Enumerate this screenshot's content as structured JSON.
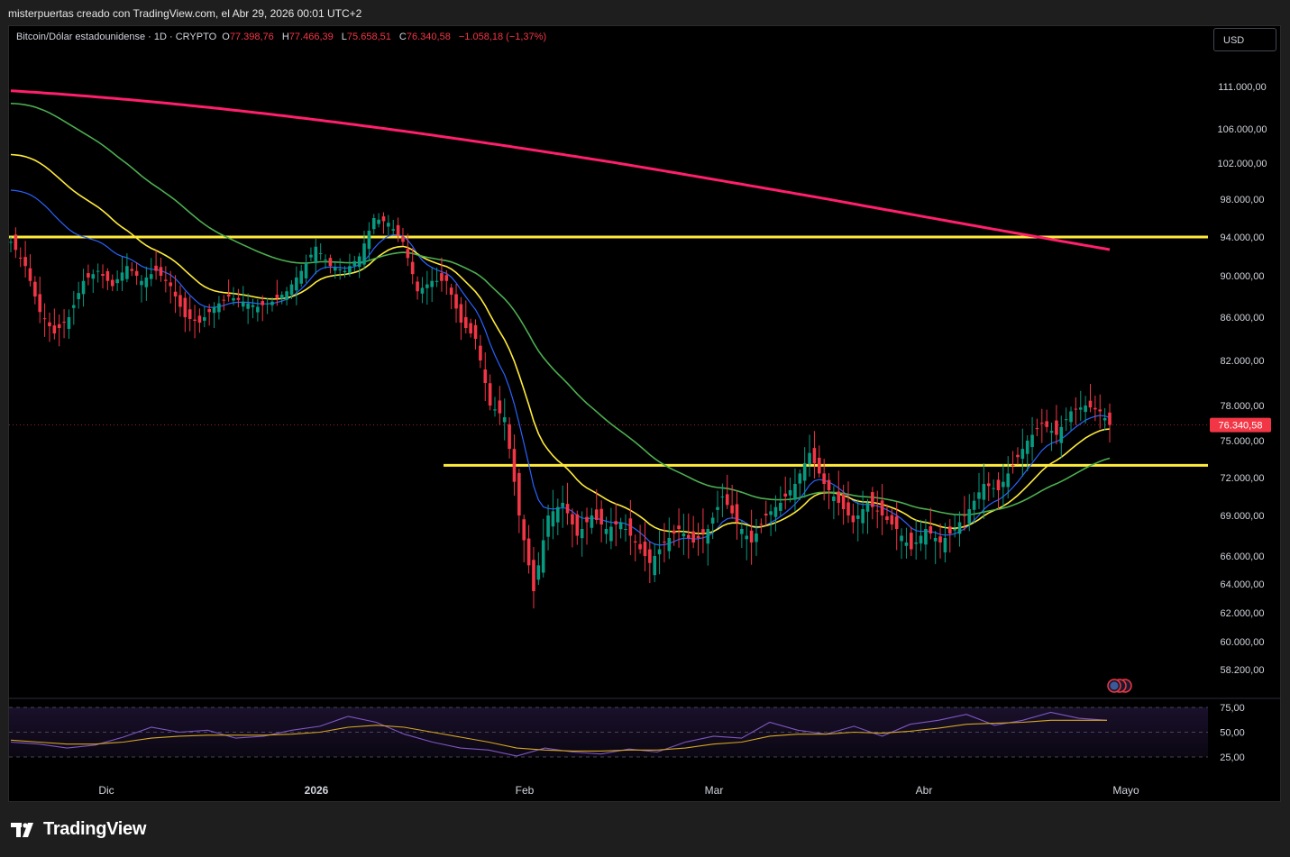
{
  "header": {
    "caption": "misterpuertas creado con TradingView.com, el Abr 29, 2026 00:01 UTC+2"
  },
  "legend": {
    "symbol": "Bitcoin/Dólar estadounidense · 1D · CRYPTO",
    "open_label": "O",
    "open_value": "77.398,76",
    "high_label": "H",
    "high_value": "77.466,39",
    "low_label": "L",
    "low_value": "75.658,51",
    "close_label": "C",
    "close_value": "76.340,58",
    "change": "−1.058,18 (−1,37%)"
  },
  "currency": "USD",
  "price_label": "76.340,58",
  "brand": {
    "name": "TradingView",
    "icon": "tradingview-logo-icon"
  },
  "event_icon": "us-flag-events-icon",
  "colors": {
    "background": "#000000",
    "up": "#089981",
    "down": "#f23645",
    "ema_fast": "#2962ff",
    "ema_mid": "#ffeb3b",
    "sma_slow": "#4caf50",
    "sma_long": "#ff1f6d",
    "level_line": "#ffeb3b",
    "rsi": "#7e57c2",
    "rsi_ma": "#d5a623"
  },
  "chart_data": [
    {
      "type": "candlestick",
      "title": "Bitcoin/Dólar estadounidense · 1D · CRYPTO",
      "x_ticks": [
        "Dic",
        "2026",
        "Feb",
        "Mar",
        "Abr",
        "Mayo"
      ],
      "y_ticks": [
        111000,
        106000,
        102000,
        98000,
        94000,
        90000,
        86000,
        82000,
        78000,
        75000,
        72000,
        69000,
        66000,
        64000,
        62000,
        60000,
        58200
      ],
      "y_tick_labels": [
        "111.000,00",
        "106.000,00",
        "102.000,00",
        "98.000,00",
        "94.000,00",
        "90.000,00",
        "86.000,00",
        "82.000,00",
        "78.000,00",
        "75.000,00",
        "72.000,00",
        "69.000,00",
        "66.000,00",
        "64.000,00",
        "62.000,00",
        "60.000,00",
        "58.200,00"
      ],
      "last_close": 76340.58,
      "horizontal_levels": [
        94000,
        73000
      ],
      "close_path": [
        [
          0,
          93500
        ],
        [
          3,
          91000
        ],
        [
          6,
          86500
        ],
        [
          9,
          84500
        ],
        [
          12,
          86000
        ],
        [
          15,
          89500
        ],
        [
          18,
          90500
        ],
        [
          21,
          89000
        ],
        [
          24,
          91000
        ],
        [
          27,
          89500
        ],
        [
          30,
          90500
        ],
        [
          33,
          89000
        ],
        [
          36,
          86000
        ],
        [
          39,
          85500
        ],
        [
          42,
          87000
        ],
        [
          45,
          88000
        ],
        [
          48,
          87500
        ],
        [
          51,
          87000
        ],
        [
          54,
          87500
        ],
        [
          57,
          88500
        ],
        [
          60,
          90500
        ],
        [
          63,
          93000
        ],
        [
          66,
          91000
        ],
        [
          69,
          90500
        ],
        [
          72,
          92000
        ],
        [
          75,
          96000
        ],
        [
          78,
          95500
        ],
        [
          81,
          93500
        ],
        [
          84,
          88500
        ],
        [
          87,
          89500
        ],
        [
          90,
          89500
        ],
        [
          93,
          85500
        ],
        [
          96,
          84000
        ],
        [
          99,
          78000
        ],
        [
          102,
          77000
        ],
        [
          105,
          69000
        ],
        [
          108,
          63500
        ],
        [
          111,
          69000
        ],
        [
          114,
          70000
        ],
        [
          117,
          67500
        ],
        [
          120,
          69000
        ],
        [
          123,
          68000
        ],
        [
          126,
          68500
        ],
        [
          129,
          67000
        ],
        [
          132,
          65500
        ],
        [
          135,
          67000
        ],
        [
          138,
          68000
        ],
        [
          141,
          67000
        ],
        [
          144,
          68000
        ],
        [
          147,
          70500
        ],
        [
          150,
          68500
        ],
        [
          153,
          67000
        ],
        [
          156,
          69000
        ],
        [
          159,
          70000
        ],
        [
          162,
          71500
        ],
        [
          165,
          74000
        ],
        [
          168,
          71500
        ],
        [
          171,
          70000
        ],
        [
          174,
          68500
        ],
        [
          177,
          70000
        ],
        [
          180,
          69000
        ],
        [
          183,
          68000
        ],
        [
          186,
          66500
        ],
        [
          189,
          68000
        ],
        [
          192,
          67000
        ],
        [
          195,
          68000
        ],
        [
          198,
          69500
        ],
        [
          201,
          71500
        ],
        [
          204,
          71000
        ],
        [
          207,
          73000
        ],
        [
          210,
          75000
        ],
        [
          213,
          76500
        ],
        [
          216,
          75500
        ],
        [
          219,
          77500
        ],
        [
          222,
          78000
        ],
        [
          225,
          77500
        ],
        [
          227,
          76340.58
        ]
      ]
    },
    {
      "type": "line",
      "title": "RSI",
      "y_ticks": [
        75,
        50,
        25
      ],
      "y_tick_labels": [
        "75,00",
        "50,00",
        "25,00"
      ],
      "series": [
        {
          "values": [
            40,
            38,
            34,
            37,
            45,
            55,
            50,
            52,
            44,
            46,
            52,
            56,
            66,
            60,
            48,
            40,
            34,
            32,
            26,
            34,
            30,
            28,
            33,
            30,
            40,
            46,
            44,
            60,
            52,
            48,
            56,
            46,
            58,
            62,
            68,
            57,
            62,
            70,
            64,
            62
          ]
        },
        {
          "values": [
            42,
            40,
            38,
            38,
            40,
            44,
            46,
            47,
            47,
            47,
            48,
            50,
            55,
            57,
            55,
            50,
            45,
            40,
            34,
            32,
            31,
            31,
            32,
            32,
            34,
            38,
            40,
            46,
            48,
            48,
            50,
            49,
            51,
            54,
            58,
            59,
            60,
            62,
            62,
            62
          ]
        }
      ]
    }
  ]
}
